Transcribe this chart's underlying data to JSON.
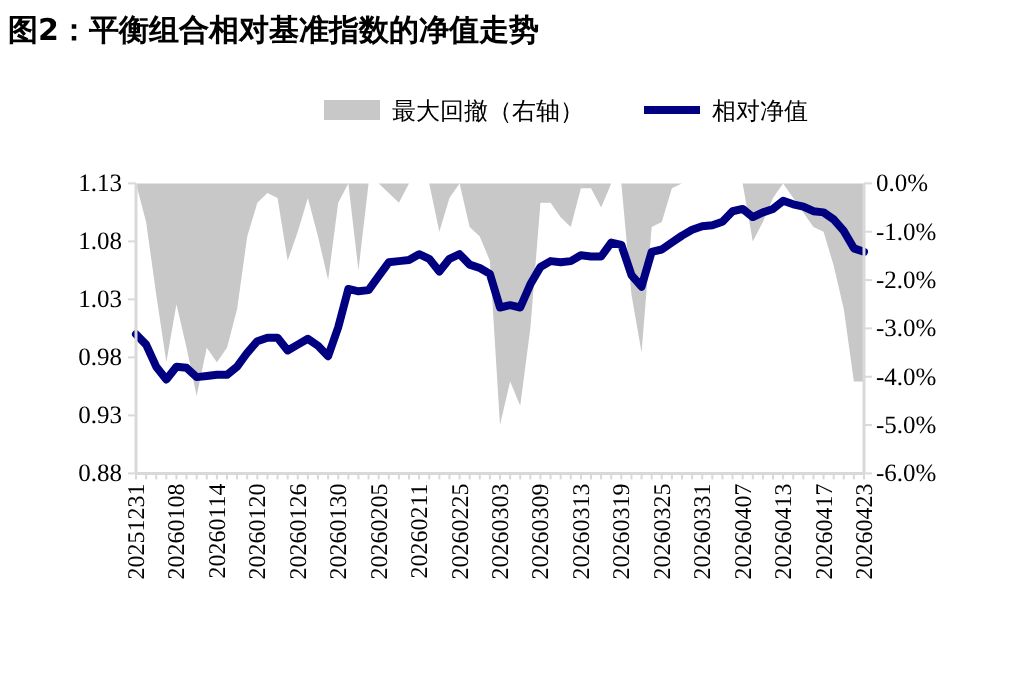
{
  "chart_data": {
    "type": "line",
    "title": "图2：平衡组合相对基准指数的净值走势",
    "categories": [
      "20251231",
      null,
      null,
      null,
      "20260108",
      null,
      null,
      null,
      "20260114",
      null,
      null,
      null,
      "20260120",
      null,
      null,
      null,
      "20260126",
      null,
      null,
      null,
      "20260130",
      null,
      null,
      null,
      "20260205",
      null,
      null,
      null,
      "20260211",
      null,
      null,
      null,
      "20260225",
      null,
      null,
      null,
      "20260303",
      null,
      null,
      null,
      "20260309",
      null,
      null,
      null,
      "20260313",
      null,
      null,
      null,
      "20260319",
      null,
      null,
      null,
      "20260325",
      null,
      null,
      null,
      "20260331",
      null,
      null,
      null,
      "20260407",
      null,
      null,
      null,
      "20260413",
      null,
      null,
      null,
      "20260417",
      null,
      null,
      null,
      "20260423"
    ],
    "series": [
      {
        "name": "最大回撤（右轴）",
        "type": "area",
        "axis": "y2",
        "color": "#c8c8c8",
        "values": [
          0,
          -0.8,
          -2.3,
          -3.7,
          -2.5,
          -3.4,
          -4.4,
          -3.4,
          -3.7,
          -3.4,
          -2.6,
          -1.1,
          -0.4,
          -0.2,
          -0.3,
          -1.6,
          -1.0,
          -0.3,
          -1.1,
          -2.0,
          -0.4,
          0,
          -1.8,
          0,
          0,
          -0.2,
          -0.4,
          0,
          0,
          0,
          -1.0,
          -0.3,
          0,
          -0.9,
          -1.1,
          -1.6,
          -5.0,
          -4.1,
          -4.6,
          -3.0,
          -0.4,
          -0.4,
          -0.7,
          -0.9,
          -0.1,
          -0.1,
          -0.5,
          0,
          0,
          -2.3,
          -3.5,
          -0.9,
          -0.8,
          -0.1,
          0,
          0,
          0,
          0,
          0,
          0,
          0,
          -1.2,
          -0.8,
          -0.3,
          0,
          -0.3,
          -0.6,
          -0.9,
          -1.0,
          -1.7,
          -2.6,
          -4.1,
          -4.1
        ]
      },
      {
        "name": "相对净值",
        "color": "#000080",
        "values": [
          1.0,
          0.991,
          0.972,
          0.961,
          0.972,
          0.971,
          0.963,
          0.964,
          0.965,
          0.965,
          0.972,
          0.984,
          0.994,
          0.997,
          0.997,
          0.986,
          0.991,
          0.996,
          0.99,
          0.981,
          1.006,
          1.039,
          1.037,
          1.038,
          1.05,
          1.062,
          1.063,
          1.064,
          1.069,
          1.065,
          1.054,
          1.065,
          1.069,
          1.06,
          1.057,
          1.052,
          1.023,
          1.025,
          1.023,
          1.043,
          1.058,
          1.063,
          1.062,
          1.063,
          1.068,
          1.067,
          1.067,
          1.079,
          1.077,
          1.051,
          1.041,
          1.071,
          1.073,
          1.079,
          1.085,
          1.09,
          1.093,
          1.094,
          1.097,
          1.106,
          1.108,
          1.101,
          1.105,
          1.108,
          1.115,
          1.112,
          1.11,
          1.106,
          1.105,
          1.099,
          1.089,
          1.074,
          1.071
        ]
      }
    ],
    "ylim": [
      0.88,
      1.13
    ],
    "yticks": [
      0.88,
      0.93,
      0.98,
      1.03,
      1.08,
      1.13
    ],
    "y2lim": [
      -6,
      0
    ],
    "y2ticks": [
      {
        "value": -6,
        "label": "-6.0%"
      },
      {
        "value": -5,
        "label": "-5.0%"
      },
      {
        "value": -4,
        "label": "-4.0%"
      },
      {
        "value": -3,
        "label": "-3.0%"
      },
      {
        "value": -2,
        "label": "-2.0%"
      },
      {
        "value": -1,
        "label": "-1.0%"
      },
      {
        "value": 0,
        "label": "0.0%"
      }
    ],
    "legend": "top"
  }
}
